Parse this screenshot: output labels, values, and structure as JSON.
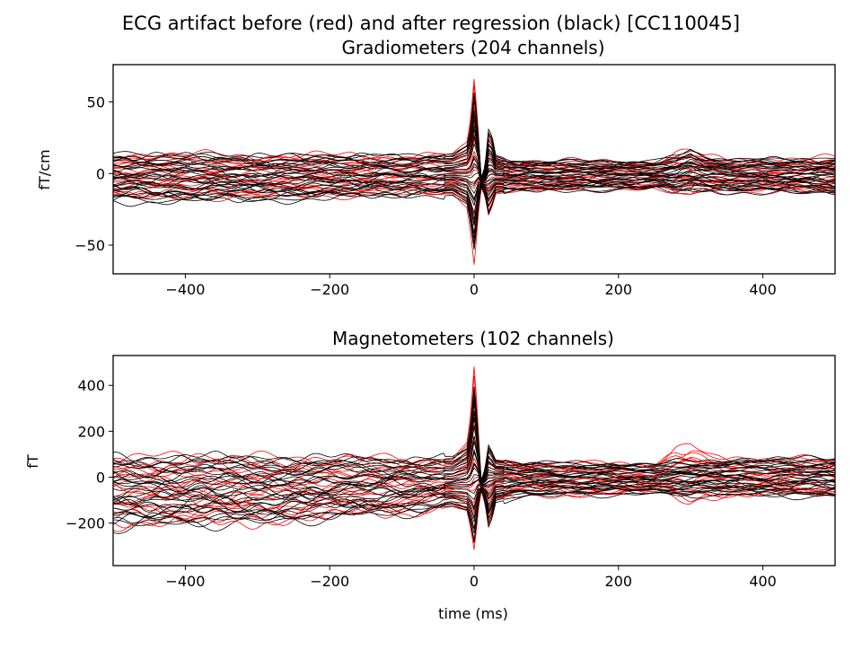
{
  "suptitle": "ECG artifact before (red) and after regression (black) [CC110045]",
  "colors": {
    "before": "#ff0000",
    "after": "#000000"
  },
  "chart_data": [
    {
      "type": "line",
      "title": "Gradiometers (204 channels)",
      "xlabel": "",
      "ylabel": "fT/cm",
      "xlim": [
        -500,
        500
      ],
      "ylim": [
        -70,
        76
      ],
      "xticks": [
        -400,
        -200,
        0,
        200,
        400
      ],
      "xticklabels": [
        "−400",
        "−200",
        "0",
        "200",
        "400"
      ],
      "yticks": [
        -50,
        0,
        50
      ],
      "yticklabels": [
        "−50",
        "0",
        "50"
      ],
      "grid": false,
      "series": [
        {
          "color": "before",
          "x": [
            -500,
            -300,
            -100,
            -30,
            -10,
            -5,
            0,
            3,
            6,
            10,
            15,
            20,
            25,
            30,
            50,
            100,
            250,
            280,
            300,
            320,
            350,
            500
          ],
          "y_upper": [
            14,
            13,
            13,
            14,
            22,
            38,
            69,
            52,
            30,
            -5,
            6,
            29,
            25,
            12,
            10,
            9,
            9,
            14,
            16,
            12,
            10,
            11
          ],
          "y_lower": [
            -17,
            -17,
            -15,
            -15,
            -24,
            -40,
            -63,
            -47,
            -28,
            -10,
            -16,
            -30,
            -24,
            -15,
            -13,
            -12,
            -11,
            -15,
            -16,
            -12,
            -13,
            -14
          ]
        },
        {
          "color": "after",
          "x": [
            -500,
            -300,
            -100,
            -30,
            -10,
            -5,
            0,
            3,
            6,
            10,
            15,
            20,
            25,
            30,
            50,
            100,
            250,
            280,
            300,
            320,
            350,
            500
          ],
          "y_upper": [
            14,
            13,
            13,
            14,
            20,
            32,
            58,
            45,
            26,
            -3,
            5,
            31,
            26,
            13,
            10,
            9,
            9,
            12,
            17,
            12,
            10,
            11
          ],
          "y_lower": [
            -20,
            -19,
            -16,
            -15,
            -22,
            -35,
            -55,
            -42,
            -24,
            -9,
            -15,
            -29,
            -23,
            -14,
            -13,
            -12,
            -11,
            -13,
            -12,
            -12,
            -13,
            -14
          ]
        }
      ]
    },
    {
      "type": "line",
      "title": "Magnetometers (102 channels)",
      "xlabel": "time (ms)",
      "ylabel": "fT",
      "xlim": [
        -500,
        500
      ],
      "ylim": [
        -385,
        530
      ],
      "xticks": [
        -400,
        -200,
        0,
        200,
        400
      ],
      "xticklabels": [
        "−400",
        "−200",
        "0",
        "200",
        "400"
      ],
      "yticks": [
        -200,
        0,
        200,
        400
      ],
      "yticklabels": [
        "−200",
        "0",
        "200",
        "400"
      ],
      "grid": false,
      "series": [
        {
          "color": "before",
          "x": [
            -500,
            -300,
            -100,
            -30,
            -10,
            -5,
            0,
            3,
            6,
            10,
            15,
            20,
            25,
            30,
            50,
            100,
            250,
            280,
            300,
            320,
            350,
            500
          ],
          "y_upper": [
            95,
            90,
            85,
            90,
            150,
            260,
            480,
            360,
            200,
            -20,
            40,
            130,
            110,
            80,
            70,
            65,
            60,
            120,
            135,
            110,
            80,
            85
          ],
          "y_lower": [
            -210,
            -200,
            -160,
            -130,
            -160,
            -240,
            -350,
            -260,
            -150,
            -60,
            -120,
            -230,
            -190,
            -110,
            -90,
            -80,
            -75,
            -95,
            -110,
            -90,
            -80,
            -85
          ]
        },
        {
          "color": "after",
          "x": [
            -500,
            -300,
            -100,
            -30,
            -10,
            -5,
            0,
            3,
            6,
            10,
            15,
            20,
            25,
            30,
            50,
            100,
            250,
            280,
            300,
            320,
            350,
            500
          ],
          "y_upper": [
            95,
            90,
            85,
            90,
            130,
            220,
            400,
            300,
            170,
            -15,
            40,
            150,
            120,
            80,
            70,
            65,
            60,
            70,
            70,
            70,
            80,
            85
          ],
          "y_lower": [
            -215,
            -200,
            -160,
            -130,
            -150,
            -210,
            -310,
            -230,
            -130,
            -55,
            -110,
            -220,
            -180,
            -110,
            -90,
            -80,
            -75,
            -80,
            -80,
            -75,
            -80,
            -85
          ]
        }
      ]
    }
  ]
}
